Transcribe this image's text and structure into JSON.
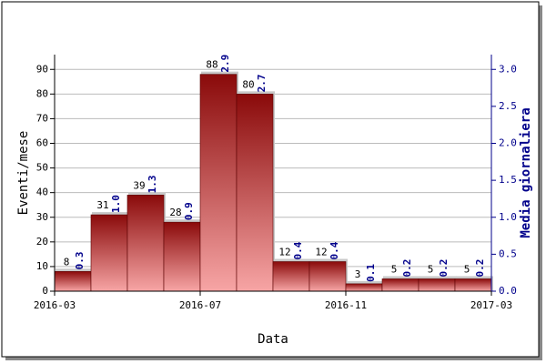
{
  "chart_data": {
    "type": "bar",
    "x_label": "Data",
    "y_label": "Eventi/mese",
    "y2_label": "Media giornaliera",
    "xlim": [
      0,
      12
    ],
    "xticks": [
      {
        "value": 0,
        "label": "2016-03"
      },
      {
        "value": 4,
        "label": "2016-07"
      },
      {
        "value": 8,
        "label": "2016-11"
      },
      {
        "value": 12,
        "label": "2017-03"
      }
    ],
    "ylim": [
      0,
      96
    ],
    "yticks": [
      0,
      10,
      20,
      30,
      40,
      50,
      60,
      70,
      80,
      90
    ],
    "y2lim": [
      0,
      3.2
    ],
    "y2ticks": [
      {
        "value": 0,
        "label": "0.0"
      },
      0.5,
      {
        "value": 1,
        "label": "1.0"
      },
      1.5,
      {
        "value": 2,
        "label": "2.0"
      },
      2.5,
      {
        "value": 3,
        "label": "3.0"
      }
    ],
    "grid": true,
    "series": [
      {
        "color": "#a00000",
        "values": [
          8,
          31,
          39,
          28,
          88,
          80,
          12,
          12,
          3,
          5,
          5,
          5
        ]
      },
      {
        "color": "#00008b",
        "axis": "y2",
        "values": [
          0.3,
          1.0,
          1.3,
          0.9,
          2.9,
          2.7,
          0.4,
          0.4,
          0.1,
          0.2,
          0.2,
          0.2
        ],
        "value_labels": [
          "0.3",
          "1.0",
          "1.3",
          "0.9",
          "2.9",
          "2.7",
          "0.4",
          "0.4",
          "0.1",
          "0.2",
          "0.2",
          "0.2"
        ]
      }
    ]
  }
}
